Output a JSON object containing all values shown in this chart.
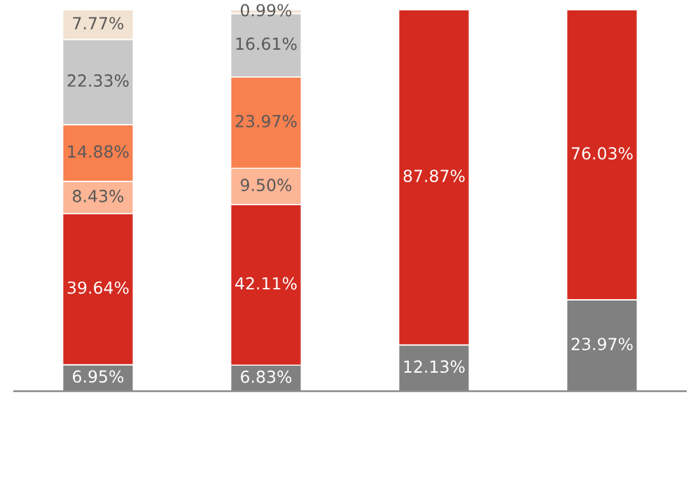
{
  "chart_data": {
    "type": "bar",
    "stacked": true,
    "categories": [
      null,
      null,
      null,
      null
    ],
    "series": [
      {
        "color": "#808080",
        "values": [
          6.95,
          6.83,
          12.13,
          23.97
        ],
        "value_labels": [
          "6.95%",
          "6.83%",
          "12.13%",
          "23.97%"
        ]
      },
      {
        "color": "#d42a20",
        "values": [
          39.64,
          42.11,
          87.87,
          76.03
        ],
        "value_labels": [
          "39.64%",
          "42.11%",
          "87.87%",
          "76.03%"
        ]
      },
      {
        "color": "#fcb595",
        "values": [
          8.43,
          9.5,
          null,
          null
        ],
        "value_labels": [
          "8.43%",
          "9.50%",
          null,
          null
        ]
      },
      {
        "color": "#f9804f",
        "values": [
          14.88,
          23.97,
          null,
          null
        ],
        "value_labels": [
          "14.88%",
          "23.97%",
          null,
          null
        ]
      },
      {
        "color": "#c8c8c8",
        "values": [
          22.33,
          16.61,
          null,
          null
        ],
        "value_labels": [
          "22.33%",
          "16.61%",
          null,
          null
        ]
      },
      {
        "color": "#f2e2d2",
        "values": [
          7.77,
          0.99,
          null,
          null
        ],
        "value_labels": [
          "7.77%",
          "0.99%",
          null,
          null
        ]
      }
    ]
  }
}
